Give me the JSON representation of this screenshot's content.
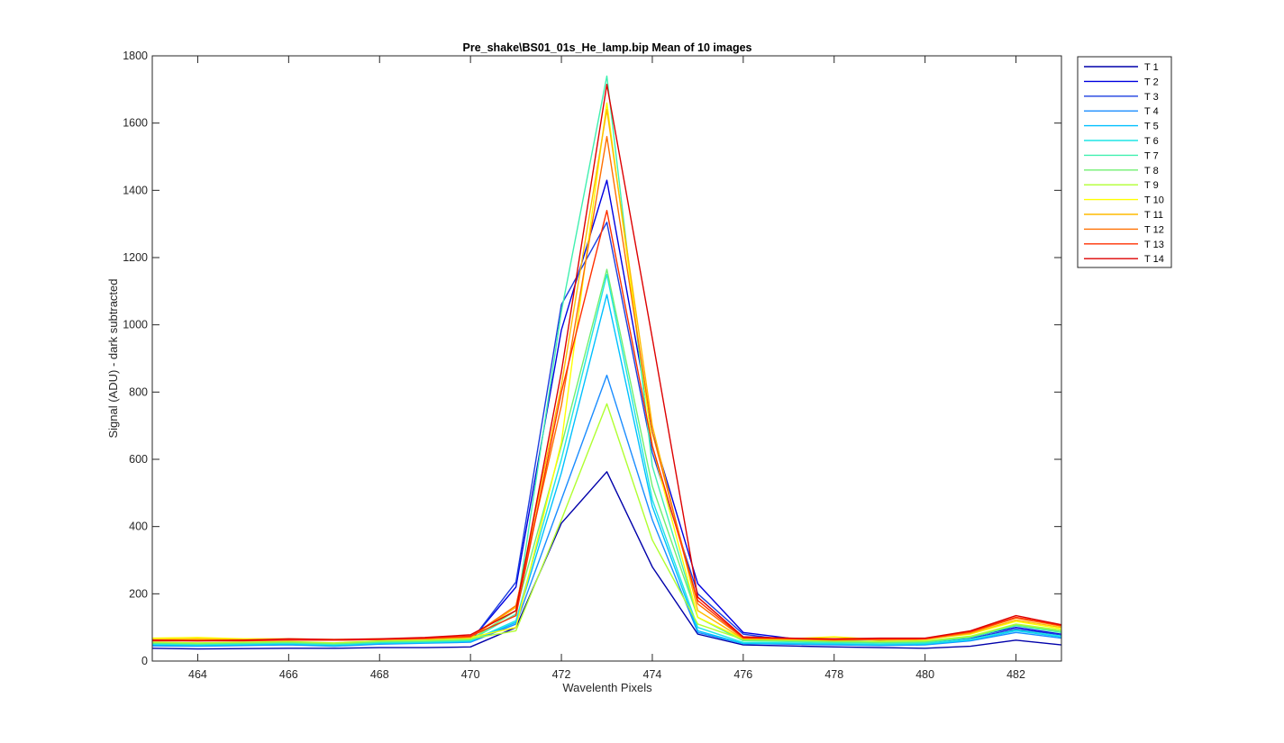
{
  "chart_data": {
    "type": "line",
    "title": "Pre_shake\\BS01_01s_He_lamp.bip  Mean of 10 images",
    "xlabel": "Wavelenth Pixels",
    "ylabel": "Signal (ADU) - dark subtracted",
    "xlim": [
      463,
      483
    ],
    "ylim": [
      0,
      1800
    ],
    "xticks": [
      "464",
      "466",
      "468",
      "470",
      "472",
      "474",
      "476",
      "478",
      "480",
      "482"
    ],
    "yticks": [
      "0",
      "200",
      "400",
      "600",
      "800",
      "1000",
      "1200",
      "1400",
      "1600",
      "1800"
    ],
    "grid": false,
    "legend_position": "outside-top-right",
    "x": [
      463,
      464,
      465,
      466,
      467,
      468,
      469,
      470,
      471,
      472,
      473,
      474,
      475,
      476,
      477,
      478,
      479,
      480,
      481,
      482,
      483
    ],
    "series": [
      {
        "name": "T 1",
        "color": "#0000aa",
        "values": [
          38,
          36,
          37,
          38,
          38,
          40,
          40,
          42,
          100,
          410,
          563,
          280,
          80,
          48,
          45,
          42,
          40,
          38,
          44,
          62,
          48
        ]
      },
      {
        "name": "T 2",
        "color": "#0000e0",
        "values": [
          55,
          52,
          54,
          55,
          50,
          55,
          58,
          60,
          220,
          985,
          1430,
          680,
          230,
          85,
          68,
          60,
          58,
          58,
          72,
          100,
          80
        ]
      },
      {
        "name": "T 3",
        "color": "#1c3ee0",
        "values": [
          50,
          48,
          50,
          52,
          46,
          52,
          55,
          58,
          235,
          1060,
          1305,
          620,
          200,
          80,
          62,
          56,
          55,
          55,
          68,
          95,
          78
        ]
      },
      {
        "name": "T 4",
        "color": "#1a8cff",
        "values": [
          45,
          44,
          46,
          48,
          44,
          50,
          53,
          56,
          110,
          480,
          850,
          420,
          85,
          52,
          50,
          48,
          46,
          48,
          60,
          85,
          68
        ]
      },
      {
        "name": "T 5",
        "color": "#00c0ff",
        "values": [
          48,
          46,
          48,
          50,
          46,
          52,
          54,
          58,
          115,
          560,
          1090,
          460,
          90,
          52,
          52,
          50,
          48,
          50,
          62,
          90,
          72
        ]
      },
      {
        "name": "T 6",
        "color": "#1ee5e5",
        "values": [
          50,
          48,
          50,
          52,
          48,
          54,
          56,
          60,
          120,
          600,
          1150,
          480,
          100,
          55,
          54,
          52,
          50,
          52,
          64,
          92,
          74
        ]
      },
      {
        "name": "T 7",
        "color": "#40f0b0",
        "values": [
          52,
          50,
          52,
          54,
          50,
          56,
          58,
          62,
          140,
          1040,
          1740,
          580,
          130,
          60,
          58,
          55,
          54,
          55,
          70,
          105,
          85
        ]
      },
      {
        "name": "T 8",
        "color": "#70f070",
        "values": [
          54,
          52,
          54,
          56,
          52,
          58,
          60,
          64,
          150,
          640,
          1165,
          520,
          130,
          62,
          60,
          58,
          56,
          58,
          72,
          108,
          88
        ]
      },
      {
        "name": "T 9",
        "color": "#b0ff30",
        "values": [
          56,
          54,
          56,
          58,
          54,
          60,
          62,
          66,
          90,
          420,
          765,
          360,
          110,
          64,
          62,
          60,
          58,
          60,
          74,
          110,
          92
        ]
      },
      {
        "name": "T 10",
        "color": "#ffff00",
        "values": [
          68,
          70,
          66,
          66,
          64,
          66,
          66,
          70,
          100,
          650,
          1660,
          640,
          130,
          66,
          66,
          72,
          64,
          66,
          80,
          118,
          96
        ]
      },
      {
        "name": "T 11",
        "color": "#ffbb00",
        "values": [
          64,
          66,
          64,
          64,
          62,
          64,
          66,
          70,
          160,
          820,
          1640,
          700,
          150,
          66,
          64,
          66,
          62,
          64,
          82,
          122,
          100
        ]
      },
      {
        "name": "T 12",
        "color": "#ff7000",
        "values": [
          62,
          62,
          62,
          64,
          62,
          64,
          66,
          72,
          165,
          760,
          1560,
          680,
          170,
          68,
          66,
          62,
          64,
          66,
          85,
          128,
          104
        ]
      },
      {
        "name": "T 13",
        "color": "#ff3000",
        "values": [
          60,
          60,
          60,
          62,
          62,
          64,
          68,
          74,
          135,
          800,
          1340,
          640,
          180,
          70,
          68,
          64,
          66,
          66,
          88,
          130,
          106
        ]
      },
      {
        "name": "T 14",
        "color": "#dd0000",
        "values": [
          62,
          60,
          62,
          66,
          64,
          66,
          70,
          78,
          150,
          860,
          1715,
          960,
          190,
          72,
          68,
          66,
          68,
          68,
          90,
          135,
          108
        ]
      }
    ]
  }
}
